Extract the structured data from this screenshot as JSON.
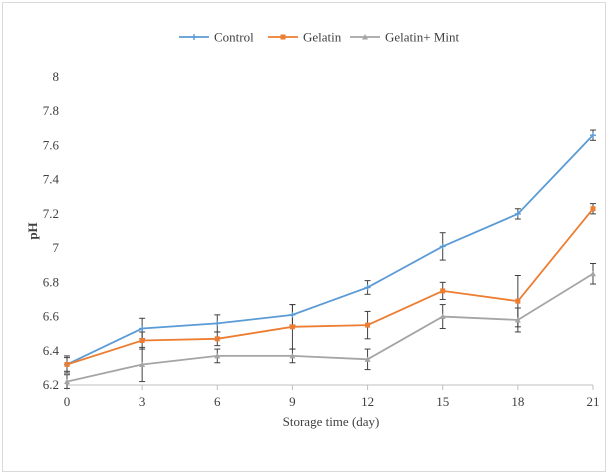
{
  "chart_data": {
    "type": "line",
    "title": "",
    "xlabel": "Storage time (day)",
    "ylabel": "pH",
    "categories": [
      "0",
      "3",
      "6",
      "9",
      "12",
      "15",
      "18",
      "21"
    ],
    "x": [
      0,
      3,
      6,
      9,
      12,
      15,
      18,
      21
    ],
    "ylim": [
      6.2,
      8
    ],
    "yticks": [
      "6.2",
      "6.4",
      "6.6",
      "6.8",
      "7",
      "7.2",
      "7.4",
      "7.6",
      "7.8",
      "8"
    ],
    "grid": false,
    "legend_position": "top",
    "series": [
      {
        "name": "Control",
        "color": "#5b9bd5",
        "marker": "plus",
        "values": [
          6.32,
          6.53,
          6.56,
          6.61,
          6.77,
          7.01,
          7.2,
          7.66
        ],
        "errors": [
          0.04,
          0.06,
          0.05,
          0.06,
          0.04,
          0.08,
          0.03,
          0.03
        ]
      },
      {
        "name": "Gelatin",
        "color": "#ed7d31",
        "marker": "square",
        "values": [
          6.32,
          6.46,
          6.47,
          6.54,
          6.55,
          6.75,
          6.69,
          7.23
        ],
        "errors": [
          0.05,
          0.05,
          0.04,
          0.13,
          0.08,
          0.05,
          0.15,
          0.03
        ]
      },
      {
        "name": "Gelatin+ Mint",
        "color": "#a5a5a5",
        "marker": "triangle",
        "values": [
          6.22,
          6.32,
          6.37,
          6.37,
          6.35,
          6.6,
          6.58,
          6.85
        ],
        "errors": [
          0.04,
          0.1,
          0.04,
          0.04,
          0.06,
          0.07,
          0.07,
          0.06
        ]
      }
    ]
  }
}
